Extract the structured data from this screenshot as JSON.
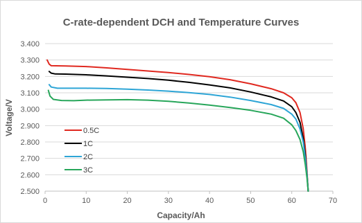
{
  "chart_data": {
    "type": "line",
    "title": "C-rate-dependent DCH and Temperature Curves",
    "xlabel": "Capacity/Ah",
    "ylabel": "Voltage/V",
    "xlim": [
      0,
      70
    ],
    "ylim": [
      2.5,
      3.4
    ],
    "x_ticks": [
      "0",
      "10",
      "20",
      "30",
      "40",
      "50",
      "60",
      "70"
    ],
    "y_ticks": [
      "2.500",
      "2.600",
      "2.700",
      "2.800",
      "2.900",
      "3.000",
      "3.100",
      "3.200",
      "3.300",
      "3.400"
    ],
    "grid": "horizontal",
    "legend_position": "left-lower",
    "series": [
      {
        "name": "0.5C",
        "color": "#e0281f",
        "points": [
          [
            0.5,
            3.3
          ],
          [
            1.0,
            3.275
          ],
          [
            1.5,
            3.265
          ],
          [
            5,
            3.264
          ],
          [
            10,
            3.26
          ],
          [
            15,
            3.252
          ],
          [
            20,
            3.243
          ],
          [
            25,
            3.233
          ],
          [
            30,
            3.224
          ],
          [
            35,
            3.212
          ],
          [
            40,
            3.198
          ],
          [
            45,
            3.18
          ],
          [
            50,
            3.155
          ],
          [
            55,
            3.125
          ],
          [
            58,
            3.1
          ],
          [
            60,
            3.07
          ],
          [
            61,
            3.04
          ],
          [
            62,
            2.98
          ],
          [
            62.8,
            2.88
          ],
          [
            63.3,
            2.76
          ],
          [
            63.7,
            2.62
          ],
          [
            64.0,
            2.5
          ]
        ]
      },
      {
        "name": "1C",
        "color": "#000000",
        "points": [
          [
            1.0,
            3.23
          ],
          [
            1.5,
            3.22
          ],
          [
            2.5,
            3.215
          ],
          [
            5,
            3.214
          ],
          [
            10,
            3.21
          ],
          [
            15,
            3.203
          ],
          [
            20,
            3.195
          ],
          [
            25,
            3.187
          ],
          [
            30,
            3.177
          ],
          [
            35,
            3.164
          ],
          [
            40,
            3.148
          ],
          [
            45,
            3.13
          ],
          [
            50,
            3.105
          ],
          [
            55,
            3.075
          ],
          [
            58,
            3.05
          ],
          [
            60,
            3.015
          ],
          [
            61,
            2.98
          ],
          [
            62,
            2.92
          ],
          [
            62.8,
            2.82
          ],
          [
            63.3,
            2.72
          ],
          [
            63.7,
            2.6
          ],
          [
            64.0,
            2.5
          ]
        ]
      },
      {
        "name": "2C",
        "color": "#2da5d6",
        "points": [
          [
            1.0,
            3.15
          ],
          [
            1.5,
            3.135
          ],
          [
            3,
            3.128
          ],
          [
            5,
            3.128
          ],
          [
            10,
            3.128
          ],
          [
            15,
            3.126
          ],
          [
            20,
            3.122
          ],
          [
            25,
            3.117
          ],
          [
            30,
            3.11
          ],
          [
            35,
            3.101
          ],
          [
            40,
            3.09
          ],
          [
            45,
            3.074
          ],
          [
            50,
            3.053
          ],
          [
            55,
            3.028
          ],
          [
            58,
            3.005
          ],
          [
            60,
            2.97
          ],
          [
            61,
            2.94
          ],
          [
            62,
            2.88
          ],
          [
            62.8,
            2.8
          ],
          [
            63.3,
            2.7
          ],
          [
            63.7,
            2.6
          ],
          [
            64.0,
            2.5
          ]
        ]
      },
      {
        "name": "3C",
        "color": "#27a65a",
        "points": [
          [
            0.8,
            3.115
          ],
          [
            1.2,
            3.08
          ],
          [
            2,
            3.06
          ],
          [
            4,
            3.053
          ],
          [
            7,
            3.052
          ],
          [
            10,
            3.055
          ],
          [
            15,
            3.057
          ],
          [
            20,
            3.058
          ],
          [
            25,
            3.055
          ],
          [
            30,
            3.048
          ],
          [
            35,
            3.038
          ],
          [
            40,
            3.025
          ],
          [
            45,
            3.01
          ],
          [
            50,
            2.993
          ],
          [
            55,
            2.97
          ],
          [
            58,
            2.945
          ],
          [
            60,
            2.905
          ],
          [
            61,
            2.87
          ],
          [
            62,
            2.815
          ],
          [
            62.8,
            2.74
          ],
          [
            63.3,
            2.66
          ],
          [
            63.7,
            2.58
          ],
          [
            64.0,
            2.5
          ]
        ]
      }
    ]
  }
}
